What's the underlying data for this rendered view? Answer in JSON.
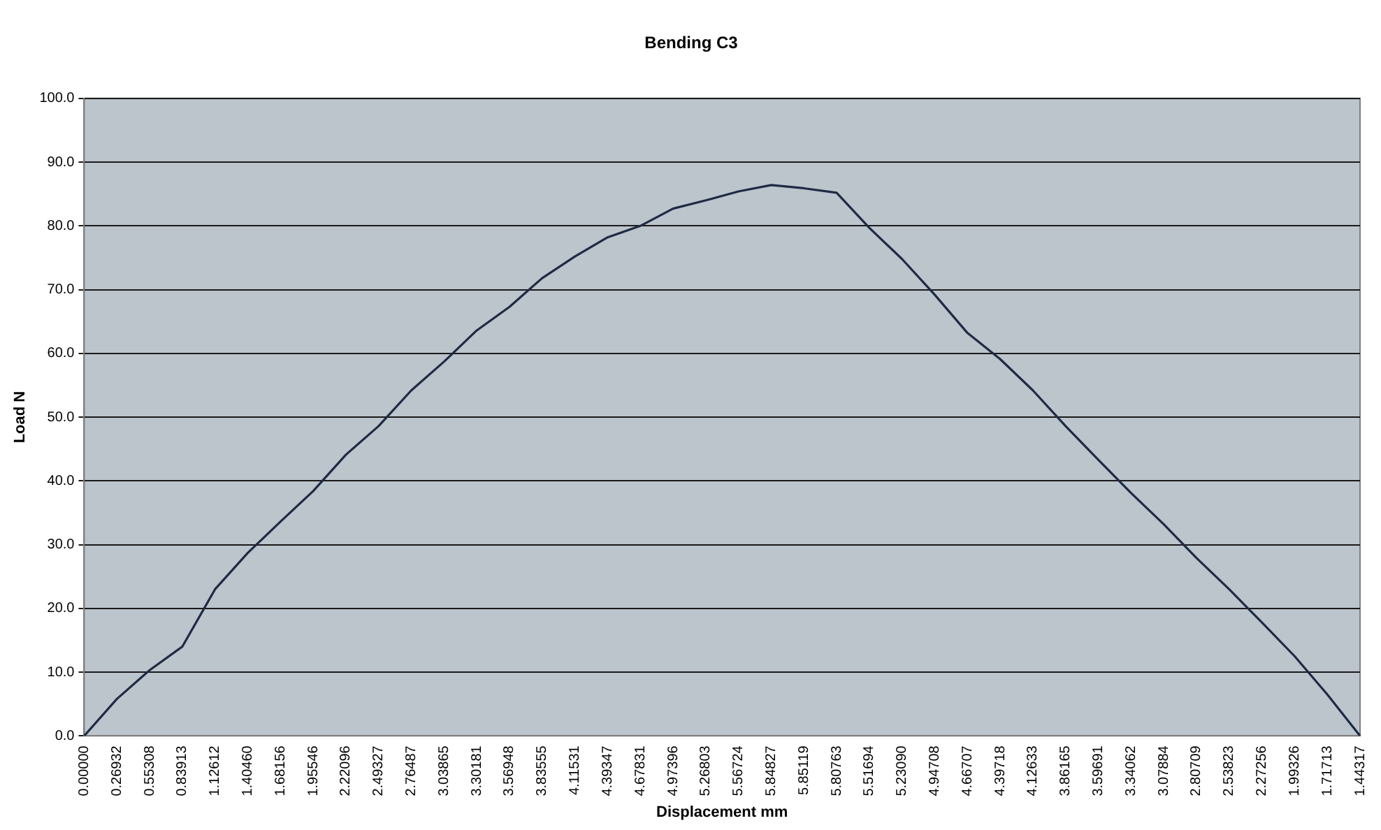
{
  "chart_data": {
    "type": "line",
    "title": "Bending C3",
    "xlabel": "Displacement mm",
    "ylabel": "Load N",
    "categories": [
      "0.00000",
      "0.26932",
      "0.55308",
      "0.83913",
      "1.12612",
      "1.40460",
      "1.68156",
      "1.95546",
      "2.22096",
      "2.49327",
      "2.76487",
      "3.03865",
      "3.30181",
      "3.56948",
      "3.83555",
      "4.11531",
      "4.39347",
      "4.67831",
      "4.97396",
      "5.26803",
      "5.56724",
      "5.84827",
      "5.85119",
      "5.80763",
      "5.51694",
      "5.23090",
      "4.94708",
      "4.66707",
      "4.39718",
      "4.12633",
      "3.86165",
      "3.59691",
      "3.34062",
      "3.07884",
      "2.80709",
      "2.53823",
      "2.27256",
      "1.99326",
      "1.71713",
      "1.44317"
    ],
    "series": [
      {
        "color": "#1f2a44",
        "values": [
          0,
          5.8,
          10.3,
          14.0,
          23.0,
          28.7,
          33.6,
          38.4,
          44.1,
          48.6,
          54.2,
          58.7,
          63.6,
          67.3,
          71.8,
          75.2,
          78.2,
          80.0,
          82.7,
          84.0,
          85.4,
          86.4,
          85.9,
          85.2,
          79.7,
          74.8,
          69.2,
          63.2,
          59.1,
          54.2,
          48.6,
          43.3,
          38.1,
          33.2,
          27.9,
          23.0,
          17.8,
          12.5,
          6.5,
          0
        ]
      }
    ],
    "ylim": [
      0,
      100
    ],
    "yticks": [
      {
        "value": 0,
        "label": "0.0"
      },
      {
        "value": 10,
        "label": "10.0"
      },
      {
        "value": 20,
        "label": "20.0"
      },
      {
        "value": 30,
        "label": "30.0"
      },
      {
        "value": 40,
        "label": "40.0"
      },
      {
        "value": 50,
        "label": "50.0"
      },
      {
        "value": 60,
        "label": "60.0"
      },
      {
        "value": 70,
        "label": "70.0"
      },
      {
        "value": 80,
        "label": "80.0"
      },
      {
        "value": 90,
        "label": "90.0"
      },
      {
        "value": 100,
        "label": "100.0"
      }
    ],
    "grid": "y",
    "legend": false,
    "marker": "none",
    "line_style": "solid"
  }
}
